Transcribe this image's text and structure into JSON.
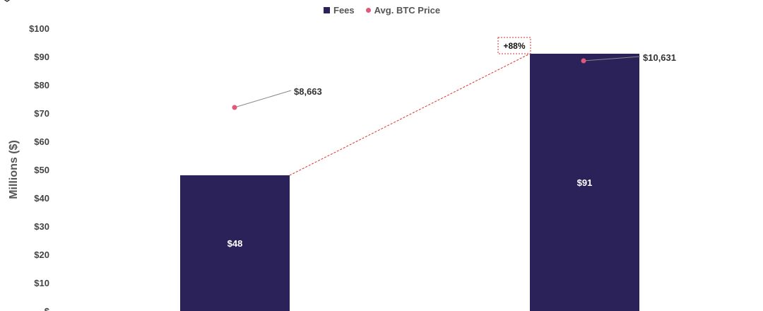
{
  "legend": {
    "fees": "Fees",
    "price": "Avg. BTC Price"
  },
  "colors": {
    "bar": "#2b2259",
    "price": "#e0587a",
    "connector": "#e03030",
    "leader": "#888888"
  },
  "chart_data": {
    "type": "bar",
    "ylabel": "Millions ($)",
    "ylim": [
      0,
      100
    ],
    "yticks": [
      0,
      10,
      20,
      30,
      40,
      50,
      60,
      70,
      80,
      90,
      100
    ],
    "ytick_labels": [
      "$",
      "$10",
      "$20",
      "$30",
      "$40",
      "$50",
      "$60",
      "$70",
      "$80",
      "$90",
      "$100"
    ],
    "categories": [
      "",
      ""
    ],
    "series": [
      {
        "name": "Fees",
        "values": [
          48,
          91
        ],
        "labels": [
          "$48",
          "$91"
        ]
      },
      {
        "name": "Avg. BTC Price",
        "values": [
          72,
          88.5
        ],
        "labels": [
          "$8,663",
          "$10,631"
        ]
      }
    ],
    "change_label": "+88%",
    "grid": false,
    "legend_position": "top-center"
  }
}
